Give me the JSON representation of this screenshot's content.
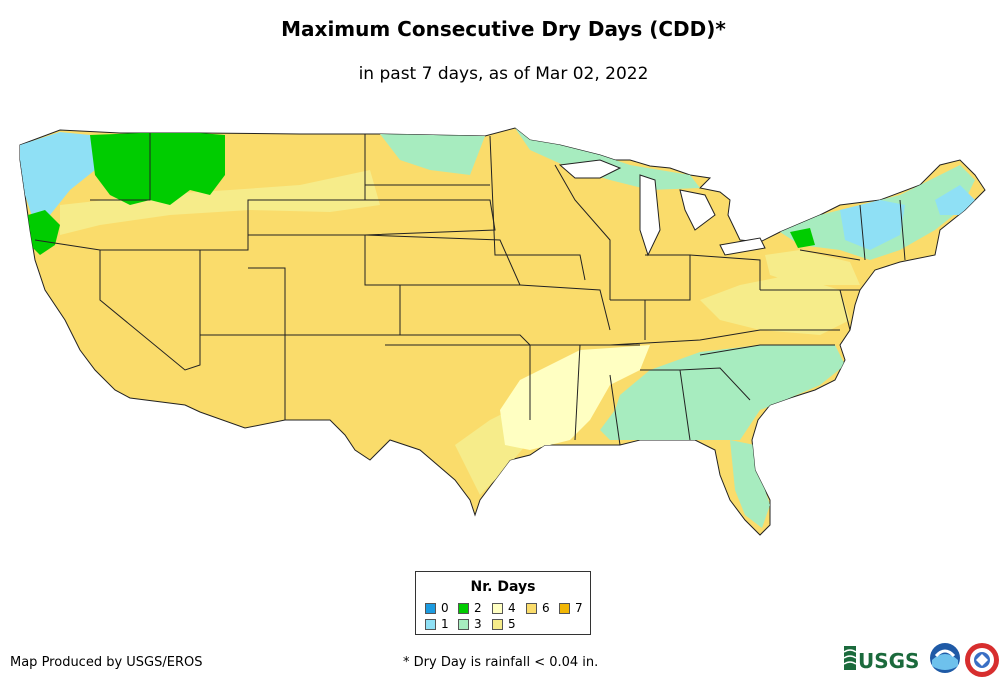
{
  "title": "Maximum Consecutive Dry Days (CDD)*",
  "subtitle": "in past 7 days, as of Mar 02, 2022",
  "legend": {
    "title": "Nr. Days",
    "items": [
      {
        "label": "0",
        "color": "#1c9be0"
      },
      {
        "label": "1",
        "color": "#8fe0f5"
      },
      {
        "label": "2",
        "color": "#00cc00"
      },
      {
        "label": "3",
        "color": "#a7ecbf"
      },
      {
        "label": "4",
        "color": "#ffffc2"
      },
      {
        "label": "5",
        "color": "#f6ec8a"
      },
      {
        "label": "6",
        "color": "#fadc6b"
      },
      {
        "label": "7",
        "color": "#f2b705"
      }
    ]
  },
  "colors": {
    "state_fill": "#fadc6b",
    "state_border": "#222222",
    "background": "#ffffff"
  },
  "credit": "Map Produced by USGS/EROS",
  "footnote": "* Dry Day is rainfall < 0.04 in.",
  "logos": {
    "usgs": "USGS",
    "noaa_icon": "noaa-logo-icon",
    "nws_icon": "nws-logo-icon"
  }
}
